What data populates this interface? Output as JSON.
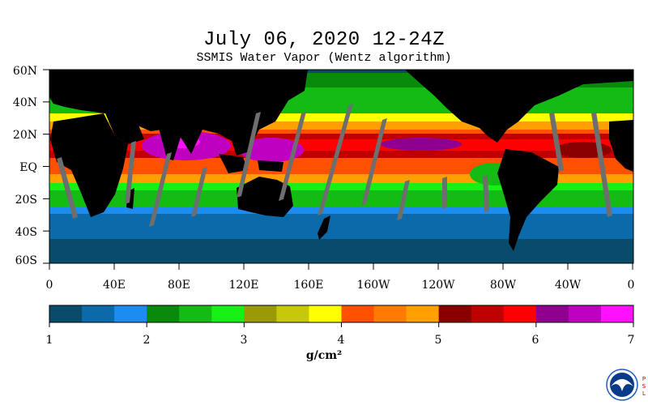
{
  "header": {
    "title": "July 06, 2020 12-24Z",
    "subtitle": "SSMIS Water Vapor (Wentz algorithm)"
  },
  "map": {
    "lat_labels": [
      "60N",
      "40N",
      "20N",
      "EQ",
      "20S",
      "40S",
      "60S"
    ],
    "lon_labels": [
      "0",
      "40E",
      "80E",
      "120E",
      "160E",
      "160W",
      "120W",
      "80W",
      "40W",
      "0"
    ]
  },
  "colorbar": {
    "colors": [
      "#084b6b",
      "#0a6aaa",
      "#1c8cf0",
      "#0a8a0a",
      "#14bb14",
      "#16f016",
      "#9a9a06",
      "#c8c80a",
      "#ffff00",
      "#ff5000",
      "#ff7a00",
      "#ffa000",
      "#8a0000",
      "#c00000",
      "#ff0000",
      "#900090",
      "#c000c0",
      "#ff10ff"
    ],
    "tick_labels": [
      "1",
      "2",
      "3",
      "4",
      "5",
      "6",
      "7"
    ],
    "unit": "g/cm²"
  },
  "logo": {
    "name": "noaa-logo",
    "side_text": "PSL",
    "colors": {
      "ring": "#1f5fbf",
      "center": "#0a3a8a",
      "bird": "#ffffff"
    }
  }
}
